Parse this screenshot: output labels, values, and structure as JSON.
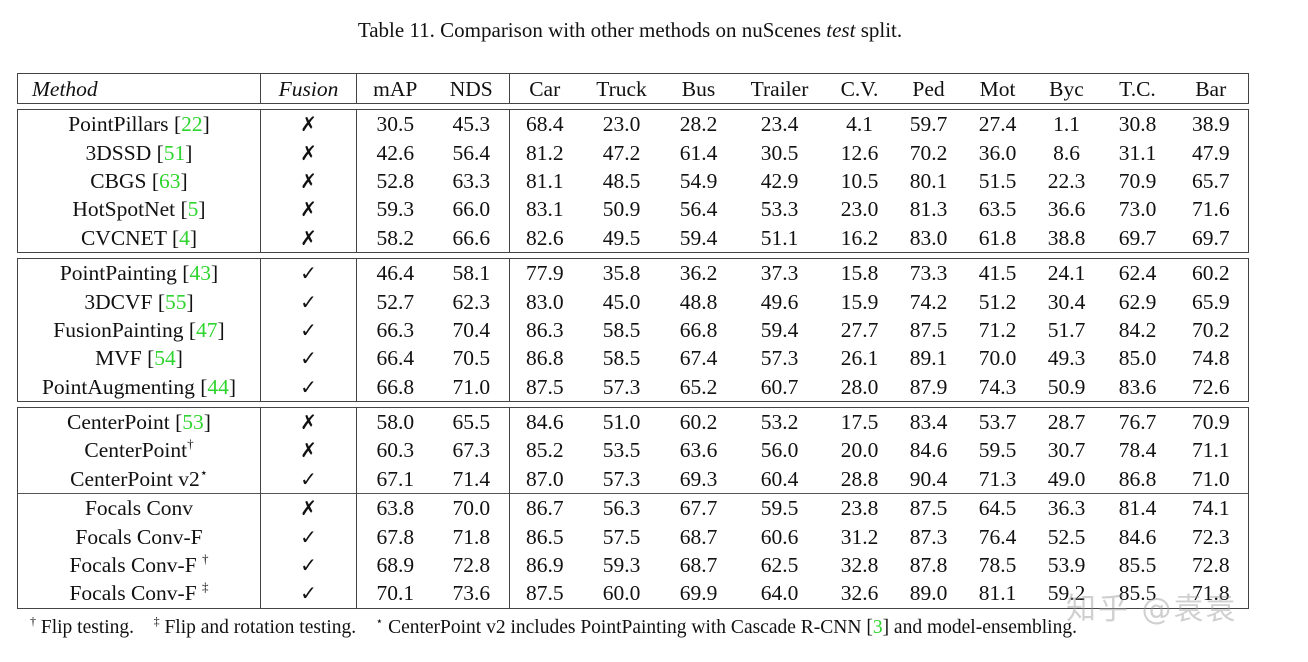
{
  "caption": {
    "prefix": "Table 11. Comparison with other methods on nuScenes ",
    "italic": "test",
    "suffix": " split."
  },
  "table": {
    "columns": [
      "Method",
      "Fusion",
      "mAP",
      "NDS",
      "Car",
      "Truck",
      "Bus",
      "Trailer",
      "C.V.",
      "Ped",
      "Mot",
      "Byc",
      "T.C.",
      "Bar"
    ],
    "groups": [
      [
        {
          "name": "PointPillars",
          "ref": "22",
          "sup": "",
          "fusion": "✗",
          "vals": [
            "30.5",
            "45.3",
            "68.4",
            "23.0",
            "28.2",
            "23.4",
            "4.1",
            "59.7",
            "27.4",
            "1.1",
            "30.8",
            "38.9"
          ]
        },
        {
          "name": "3DSSD",
          "ref": "51",
          "sup": "",
          "fusion": "✗",
          "vals": [
            "42.6",
            "56.4",
            "81.2",
            "47.2",
            "61.4",
            "30.5",
            "12.6",
            "70.2",
            "36.0",
            "8.6",
            "31.1",
            "47.9"
          ]
        },
        {
          "name": "CBGS",
          "ref": "63",
          "sup": "",
          "fusion": "✗",
          "vals": [
            "52.8",
            "63.3",
            "81.1",
            "48.5",
            "54.9",
            "42.9",
            "10.5",
            "80.1",
            "51.5",
            "22.3",
            "70.9",
            "65.7"
          ]
        },
        {
          "name": "HotSpotNet",
          "ref": "5",
          "sup": "",
          "fusion": "✗",
          "vals": [
            "59.3",
            "66.0",
            "83.1",
            "50.9",
            "56.4",
            "53.3",
            "23.0",
            "81.3",
            "63.5",
            "36.6",
            "73.0",
            "71.6"
          ]
        },
        {
          "name": "CVCNET",
          "ref": "4",
          "sup": "",
          "fusion": "✗",
          "vals": [
            "58.2",
            "66.6",
            "82.6",
            "49.5",
            "59.4",
            "51.1",
            "16.2",
            "83.0",
            "61.8",
            "38.8",
            "69.7",
            "69.7"
          ]
        }
      ],
      [
        {
          "name": "PointPainting",
          "ref": "43",
          "sup": "",
          "fusion": "✓",
          "vals": [
            "46.4",
            "58.1",
            "77.9",
            "35.8",
            "36.2",
            "37.3",
            "15.8",
            "73.3",
            "41.5",
            "24.1",
            "62.4",
            "60.2"
          ]
        },
        {
          "name": "3DCVF",
          "ref": "55",
          "sup": "",
          "fusion": "✓",
          "vals": [
            "52.7",
            "62.3",
            "83.0",
            "45.0",
            "48.8",
            "49.6",
            "15.9",
            "74.2",
            "51.2",
            "30.4",
            "62.9",
            "65.9"
          ]
        },
        {
          "name": "FusionPainting",
          "ref": "47",
          "sup": "",
          "fusion": "✓",
          "vals": [
            "66.3",
            "70.4",
            "86.3",
            "58.5",
            "66.8",
            "59.4",
            "27.7",
            "87.5",
            "71.2",
            "51.7",
            "84.2",
            "70.2"
          ]
        },
        {
          "name": "MVF",
          "ref": "54",
          "sup": "",
          "fusion": "✓",
          "vals": [
            "66.4",
            "70.5",
            "86.8",
            "58.5",
            "67.4",
            "57.3",
            "26.1",
            "89.1",
            "70.0",
            "49.3",
            "85.0",
            "74.8"
          ]
        },
        {
          "name": "PointAugmenting",
          "ref": "44",
          "sup": "",
          "fusion": "✓",
          "vals": [
            "66.8",
            "71.0",
            "87.5",
            "57.3",
            "65.2",
            "60.7",
            "28.0",
            "87.9",
            "74.3",
            "50.9",
            "83.6",
            "72.6"
          ]
        }
      ],
      [
        {
          "name": "CenterPoint",
          "ref": "53",
          "sup": "",
          "fusion": "✗",
          "vals": [
            "58.0",
            "65.5",
            "84.6",
            "51.0",
            "60.2",
            "53.2",
            "17.5",
            "83.4",
            "53.7",
            "28.7",
            "76.7",
            "70.9"
          ]
        },
        {
          "name": "CenterPoint",
          "ref": "",
          "sup": "†",
          "fusion": "✗",
          "vals": [
            "60.3",
            "67.3",
            "85.2",
            "53.5",
            "63.6",
            "56.0",
            "20.0",
            "84.6",
            "59.5",
            "30.7",
            "78.4",
            "71.1"
          ]
        },
        {
          "name": "CenterPoint v2",
          "ref": "",
          "sup": "⋆",
          "fusion": "✓",
          "vals": [
            "67.1",
            "71.4",
            "87.0",
            "57.3",
            "69.3",
            "60.4",
            "28.8",
            "90.4",
            "71.3",
            "49.0",
            "86.8",
            "71.0"
          ]
        }
      ],
      [
        {
          "name": "Focals Conv",
          "ref": "",
          "sup": "",
          "fusion": "✗",
          "vals": [
            "63.8",
            "70.0",
            "86.7",
            "56.3",
            "67.7",
            "59.5",
            "23.8",
            "87.5",
            "64.5",
            "36.3",
            "81.4",
            "74.1"
          ]
        },
        {
          "name": "Focals Conv-F",
          "ref": "",
          "sup": "",
          "fusion": "✓",
          "vals": [
            "67.8",
            "71.8",
            "86.5",
            "57.5",
            "68.7",
            "60.6",
            "31.2",
            "87.3",
            "76.4",
            "52.5",
            "84.6",
            "72.3"
          ]
        },
        {
          "name": "Focals Conv-F ",
          "ref": "",
          "sup": "†",
          "fusion": "✓",
          "vals": [
            "68.9",
            "72.8",
            "86.9",
            "59.3",
            "68.7",
            "62.5",
            "32.8",
            "87.8",
            "78.5",
            "53.9",
            "85.5",
            "72.8"
          ]
        },
        {
          "name": "Focals Conv-F ",
          "ref": "",
          "sup": "‡",
          "fusion": "✓",
          "bold_cols": [
            0,
            1
          ],
          "vals": [
            "70.1",
            "73.6",
            "87.5",
            "60.0",
            "69.9",
            "64.0",
            "32.6",
            "89.0",
            "81.1",
            "59.2",
            "85.5",
            "71.8"
          ]
        }
      ]
    ]
  },
  "footnote": {
    "dagger": "†",
    "dagger_text": " Flip testing.",
    "ddagger": "‡",
    "ddagger_text": " Flip and rotation testing.",
    "star": "⋆",
    "star_text_before": " CenterPoint v2 includes PointPainting with Cascade R-CNN [",
    "star_ref": "3",
    "star_text_after": "] and model-ensembling."
  },
  "watermark": "知乎 @袁袁",
  "colors": {
    "citation": "#2fd52f",
    "text": "#111111",
    "rule": "#444444"
  }
}
